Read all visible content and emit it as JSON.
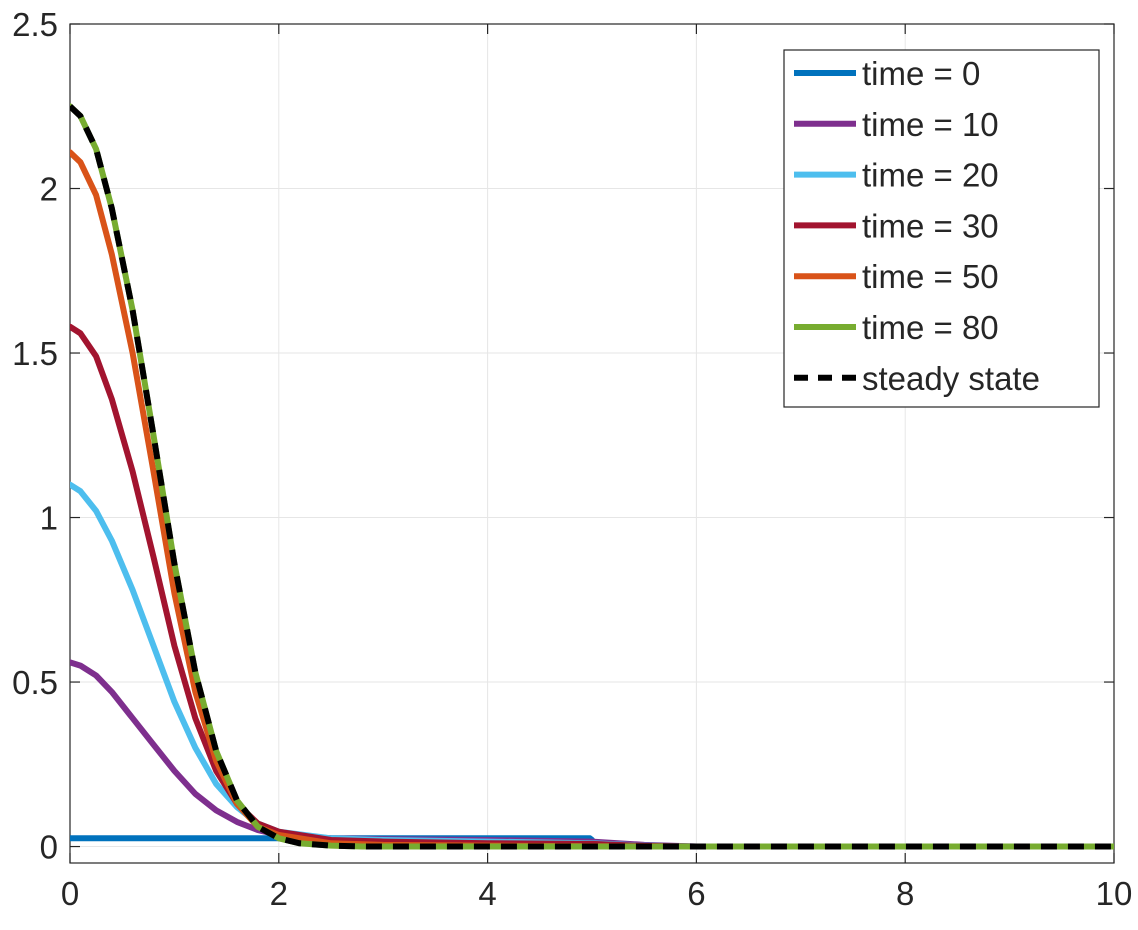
{
  "chart_data": {
    "type": "line",
    "title": "",
    "xlabel": "",
    "ylabel": "",
    "xlim": [
      0,
      10
    ],
    "ylim": [
      -0.05,
      2.5
    ],
    "xticks": [
      0,
      2,
      4,
      6,
      8,
      10
    ],
    "xtick_labels": [
      "0",
      "2",
      "4",
      "6",
      "8",
      "10"
    ],
    "yticks": [
      0,
      0.5,
      1,
      1.5,
      2,
      2.5
    ],
    "ytick_labels": [
      "0",
      "0.5",
      "1",
      "1.5",
      "2",
      "2.5"
    ],
    "grid": true,
    "legend_position": "top-right",
    "series": [
      {
        "name": "time = 0",
        "color": "#0072BD",
        "dash": "solid",
        "x": [
          0,
          4.98,
          5.0,
          5.02,
          10
        ],
        "y": [
          0.025,
          0.025,
          0.02,
          0.0,
          0.0
        ]
      },
      {
        "name": "time = 10",
        "color": "#7E2F8E",
        "dash": "solid",
        "x": [
          0,
          0.1,
          0.25,
          0.4,
          0.6,
          0.8,
          1.0,
          1.2,
          1.4,
          1.6,
          1.8,
          2.0,
          2.5,
          3.0,
          4.0,
          5.0,
          5.5,
          6.0,
          10
        ],
        "y": [
          0.56,
          0.55,
          0.52,
          0.47,
          0.39,
          0.31,
          0.23,
          0.16,
          0.11,
          0.075,
          0.05,
          0.035,
          0.025,
          0.022,
          0.02,
          0.015,
          0.005,
          0.0,
          0.0
        ]
      },
      {
        "name": "time = 20",
        "color": "#4DBEEE",
        "dash": "solid",
        "x": [
          0,
          0.1,
          0.25,
          0.4,
          0.6,
          0.8,
          1.0,
          1.2,
          1.4,
          1.6,
          1.8,
          2.0,
          2.5,
          3.0,
          4.0,
          5.0,
          5.5,
          6.0,
          10
        ],
        "y": [
          1.1,
          1.08,
          1.02,
          0.93,
          0.78,
          0.61,
          0.44,
          0.3,
          0.19,
          0.12,
          0.07,
          0.045,
          0.025,
          0.02,
          0.015,
          0.01,
          0.003,
          0.0,
          0.0
        ]
      },
      {
        "name": "time = 30",
        "color": "#A2142F",
        "dash": "solid",
        "x": [
          0,
          0.1,
          0.25,
          0.4,
          0.6,
          0.8,
          1.0,
          1.2,
          1.4,
          1.6,
          1.8,
          2.0,
          2.5,
          3.0,
          4.0,
          5.0,
          5.5,
          6.0,
          10
        ],
        "y": [
          1.58,
          1.56,
          1.49,
          1.36,
          1.14,
          0.88,
          0.61,
          0.39,
          0.23,
          0.13,
          0.07,
          0.045,
          0.02,
          0.015,
          0.01,
          0.008,
          0.002,
          0.0,
          0.0
        ]
      },
      {
        "name": "time = 50",
        "color": "#D95319",
        "dash": "solid",
        "x": [
          0,
          0.1,
          0.25,
          0.4,
          0.6,
          0.8,
          1.0,
          1.2,
          1.4,
          1.6,
          1.8,
          2.0,
          2.5,
          3.0,
          4.0,
          5.0,
          6.0,
          10
        ],
        "y": [
          2.11,
          2.08,
          1.98,
          1.8,
          1.5,
          1.14,
          0.77,
          0.47,
          0.26,
          0.13,
          0.06,
          0.035,
          0.01,
          0.005,
          0.003,
          0.001,
          0.0,
          0.0
        ]
      },
      {
        "name": "time = 80",
        "color": "#77AC30",
        "dash": "solid",
        "x": [
          0,
          0.1,
          0.25,
          0.4,
          0.6,
          0.8,
          1.0,
          1.2,
          1.4,
          1.6,
          1.8,
          2.0,
          2.2,
          2.5,
          2.8,
          3.0,
          4.0,
          10
        ],
        "y": [
          2.25,
          2.22,
          2.12,
          1.94,
          1.63,
          1.25,
          0.86,
          0.53,
          0.29,
          0.14,
          0.06,
          0.025,
          0.01,
          0.003,
          0.0,
          0.0,
          0.0,
          0.0
        ]
      },
      {
        "name": "steady state",
        "color": "#000000",
        "dash": "dashed",
        "x": [
          0,
          0.1,
          0.25,
          0.4,
          0.6,
          0.8,
          1.0,
          1.2,
          1.4,
          1.6,
          1.8,
          2.0,
          2.2,
          2.5,
          2.8,
          3.0,
          4.0,
          10
        ],
        "y": [
          2.25,
          2.22,
          2.12,
          1.94,
          1.63,
          1.25,
          0.86,
          0.53,
          0.29,
          0.14,
          0.06,
          0.025,
          0.01,
          0.003,
          0.0,
          0.0,
          0.0,
          0.0
        ]
      }
    ]
  }
}
